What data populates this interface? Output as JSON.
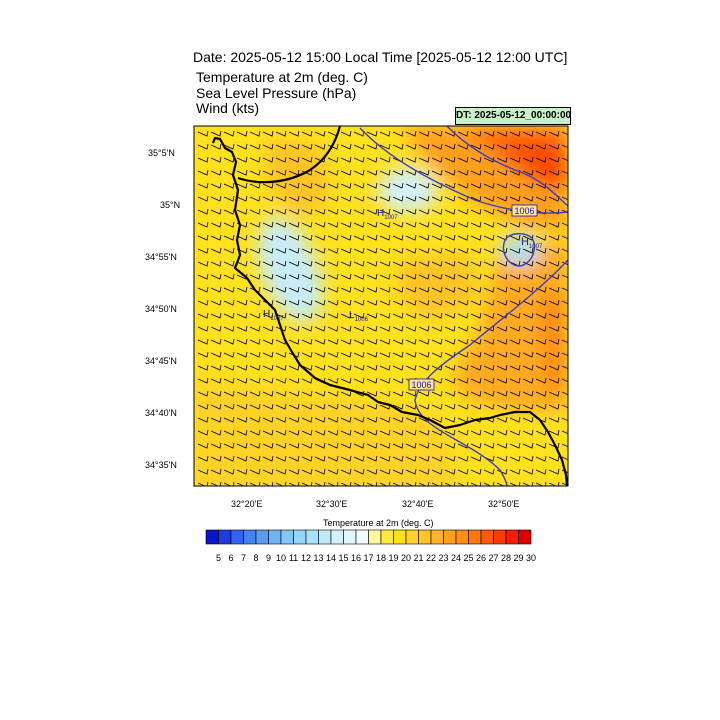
{
  "header": {
    "title": "Date: 2025-05-12  15:00 Local Time [2025-05-12  12:00 UTC]",
    "line1": "Temperature at 2m   (deg. C)",
    "line2": "Sea Level Pressure   (hPa)",
    "line3": "Wind   (kts)",
    "dt_label": "DT: 2025-05-12_00:00:00"
  },
  "axes": {
    "lat_labels": [
      "35°5'N",
      "35°N",
      "34°55'N",
      "34°50'N",
      "34°45'N",
      "34°40'N",
      "34°35'N"
    ],
    "lon_labels": [
      "32°20'E",
      "32°30'E",
      "32°40'E",
      "32°50'E"
    ]
  },
  "pressure_markers": [
    {
      "type": "H",
      "value": "1007"
    },
    {
      "type": "H",
      "value": "1007"
    },
    {
      "type": "L",
      "value": "1006"
    },
    {
      "type": "H",
      "value": "1007"
    }
  ],
  "contour_labels": [
    "1006",
    "1006"
  ],
  "colorbar": {
    "title": "Temperature at 2m  (deg. C)",
    "ticks": [
      "5",
      "6",
      "7",
      "8",
      "9",
      "10",
      "11",
      "12",
      "13",
      "14",
      "15",
      "16",
      "17",
      "18",
      "19",
      "20",
      "21",
      "22",
      "23",
      "24",
      "25",
      "26",
      "27",
      "28",
      "29",
      "30"
    ],
    "colors": [
      "#0a14c8",
      "#1e3cdc",
      "#3264f0",
      "#4682f0",
      "#5a9bf0",
      "#6eb4f5",
      "#82c8f5",
      "#96d7f8",
      "#aae1fa",
      "#bee9fb",
      "#d2f1fc",
      "#e1f7fd",
      "#f0fcfe",
      "#fff5a0",
      "#ffeb3c",
      "#ffe119",
      "#ffd228",
      "#ffc328",
      "#ffb428",
      "#ffa01e",
      "#ff8c14",
      "#ff7814",
      "#ff5a0a",
      "#ff3c05",
      "#f51e00",
      "#e10000"
    ]
  },
  "colors": {
    "contour": "#3c3cc8",
    "coast": "#000000",
    "label": "#1a1aa0"
  }
}
